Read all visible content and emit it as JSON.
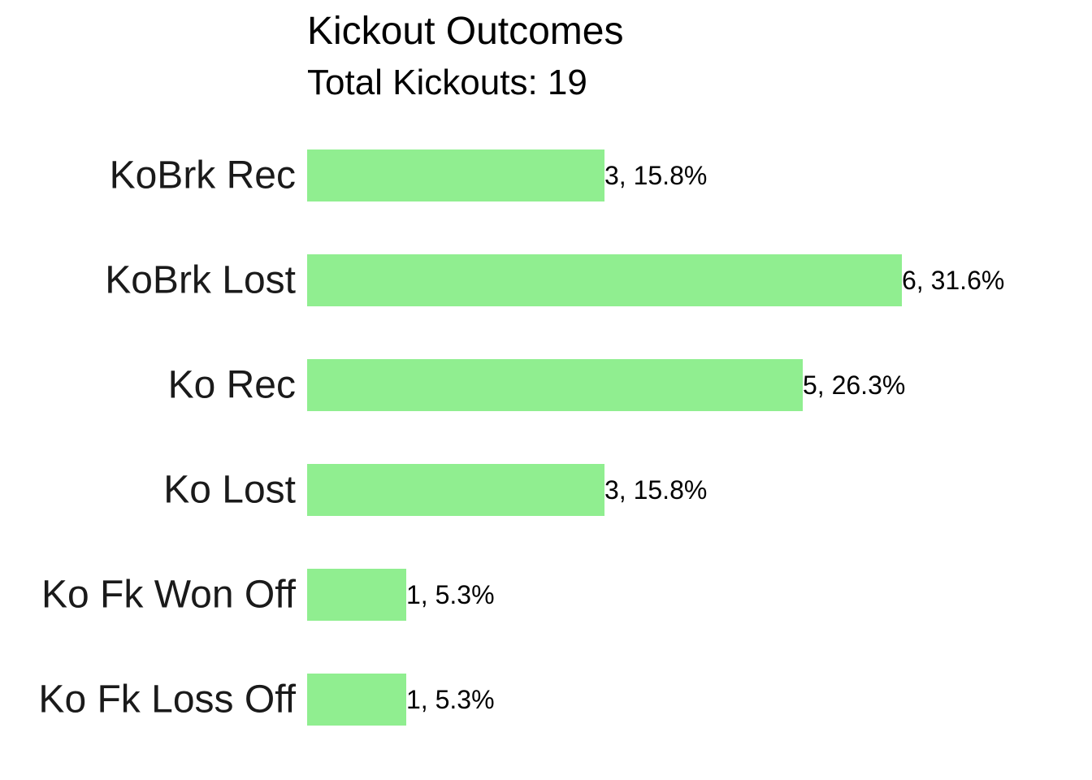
{
  "chart_data": {
    "type": "bar",
    "orientation": "horizontal",
    "title": "Kickout Outcomes",
    "subtitle": "Total Kickouts: 19",
    "categories": [
      "KoBrk Rec",
      "KoBrk Lost",
      "Ko Rec",
      "Ko Lost",
      "Ko Fk Won Off",
      "Ko Fk Loss Off"
    ],
    "values": [
      3,
      6,
      5,
      3,
      1,
      1
    ],
    "data_labels": [
      "3, 15.8%",
      "6, 31.6%",
      "5, 26.3%",
      "3, 15.8%",
      "1, 5.3%",
      "1, 5.3%"
    ],
    "xlabel": "",
    "ylabel": "",
    "xlim": [
      0,
      6
    ],
    "grid": false,
    "legend": "none",
    "bar_color": "#90ee90"
  }
}
